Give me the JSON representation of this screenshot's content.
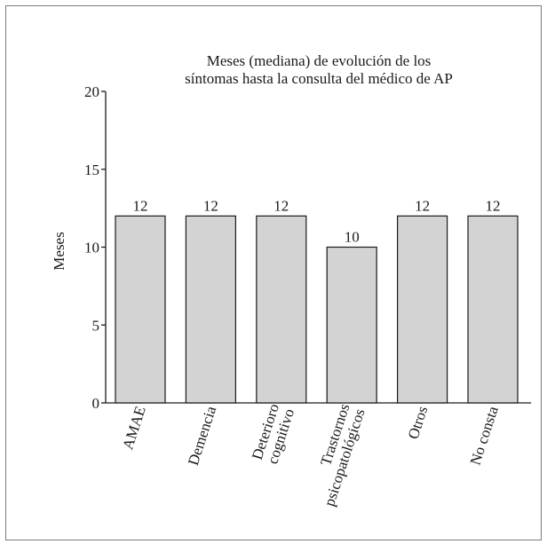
{
  "chart_data": {
    "type": "bar",
    "title": [
      "Meses (mediana) de evolución de los",
      "síntomas hasta la consulta del médico de AP"
    ],
    "ylabel": "Meses",
    "ylim": [
      0,
      20
    ],
    "yticks": [
      0,
      5,
      10,
      15,
      20
    ],
    "categories": [
      [
        "AMAE"
      ],
      [
        "Demencia"
      ],
      [
        "Deterioro",
        "cognitivo"
      ],
      [
        "Trastornos",
        "psicopatológicos"
      ],
      [
        "Otros"
      ],
      [
        "No consta"
      ]
    ],
    "values": [
      12,
      12,
      12,
      10,
      12,
      12
    ],
    "data_labels": [
      "12",
      "12",
      "12",
      "10",
      "12",
      "12"
    ],
    "bar_color": "#d3d3d3",
    "bar_edge_color": "#1a1a1a",
    "grid": false,
    "legend": "none"
  }
}
